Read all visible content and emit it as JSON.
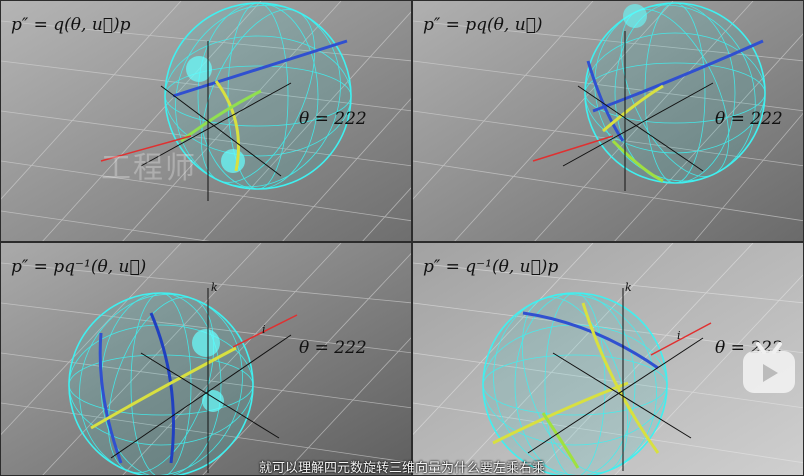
{
  "panels": [
    {
      "equation": "p″ = q(θ, u⃗)p",
      "theta_label": "θ = 222",
      "axis_k": "",
      "axis_i": ""
    },
    {
      "equation": "p″ = pq(θ, u⃗)",
      "theta_label": "θ = 222",
      "axis_k": "",
      "axis_i": ""
    },
    {
      "equation": "p″ = pq⁻¹(θ, u⃗)",
      "theta_label": "θ = 222",
      "axis_k": "k",
      "axis_i": "i"
    },
    {
      "equation": "p″ = q⁻¹(θ, u⃗)p",
      "theta_label": "θ = 222",
      "axis_k": "k",
      "axis_i": "i"
    }
  ],
  "watermark": "工程师",
  "subtitle": "就可以理解四元数旋转三维向量为什么要左乘右乘",
  "colors": {
    "sphere": "#3ff0f0",
    "background_light": "#a8a8a8",
    "background_dark": "#555555",
    "axis_red": "#e03030",
    "logo": "#f0f0f0"
  },
  "icons": {
    "logo": "bilibili-tv-icon"
  }
}
